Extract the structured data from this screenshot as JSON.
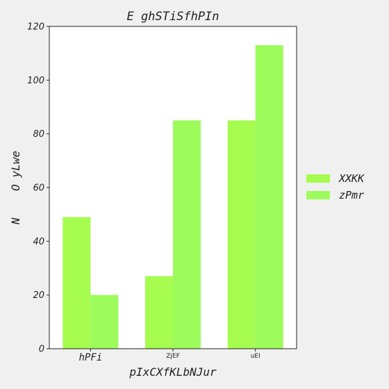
{
  "chart_data": {
    "type": "bar",
    "title": "E ghSTiSfhPIn",
    "xlabel": "pIxCXfKLbNJur",
    "ylabel": "N    O yLwe",
    "categories": [
      "hPFi",
      "ZjEF",
      "uEl"
    ],
    "series": [
      {
        "name": "XXKK",
        "values": [
          49,
          27,
          85
        ],
        "color": "#a6fc4f"
      },
      {
        "name": "zPmr",
        "values": [
          20,
          85,
          113
        ],
        "color": "#9dfc5c"
      }
    ],
    "ylim": [
      0,
      120
    ],
    "yticks": [
      0,
      20,
      40,
      60,
      80,
      100,
      120
    ],
    "grid": false,
    "legend_position": "right"
  }
}
